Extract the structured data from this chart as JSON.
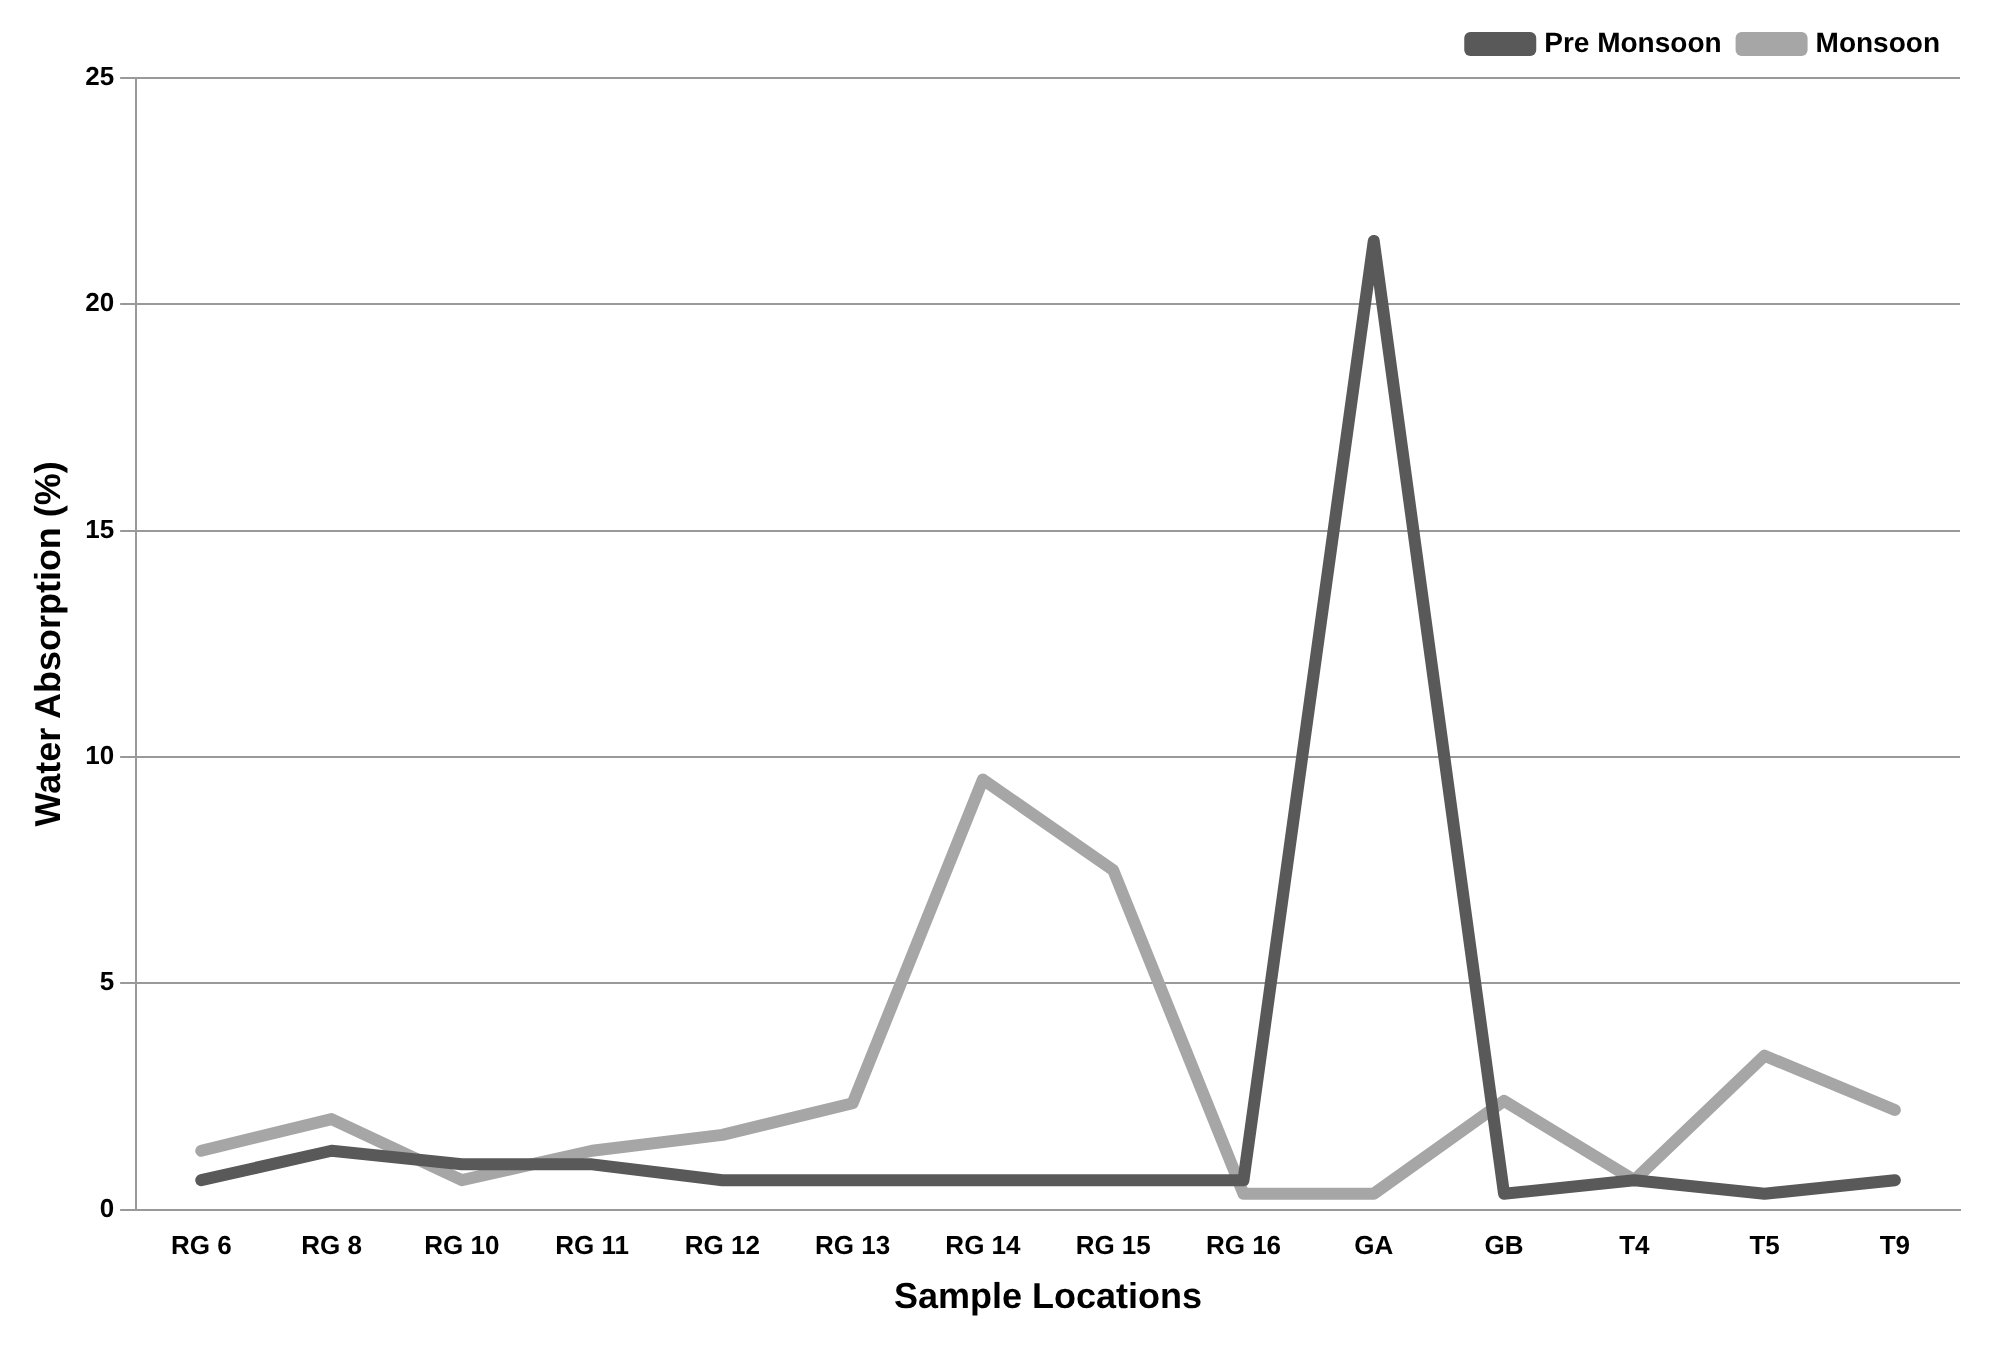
{
  "chart_data": {
    "type": "line",
    "xlabel": "Sample Locations",
    "ylabel": "Water Absorption (%)",
    "categories": [
      "RG 6",
      "RG 8",
      "RG 10",
      "RG 11",
      "RG 12",
      "RG 13",
      "RG 14",
      "RG 15",
      "RG 16",
      "GA",
      "GB",
      "T4",
      "T5",
      "T9"
    ],
    "series": [
      {
        "name": "Pre Monsoon",
        "color": "#595959",
        "values": [
          0.65,
          1.3,
          1.0,
          1.0,
          0.65,
          0.65,
          0.65,
          0.65,
          0.65,
          21.4,
          0.35,
          0.65,
          0.35,
          0.65
        ]
      },
      {
        "name": "Monsoon",
        "color": "#a6a6a6",
        "values": [
          1.3,
          2.0,
          0.65,
          1.3,
          1.65,
          2.35,
          9.5,
          7.5,
          0.35,
          0.35,
          2.4,
          0.65,
          3.4,
          2.2
        ]
      }
    ],
    "ylim": [
      0,
      25
    ],
    "yticks": [
      0,
      5,
      10,
      15,
      20,
      25
    ],
    "grid": "y",
    "legend": "top right",
    "marker": "none",
    "line_style": "solid"
  }
}
